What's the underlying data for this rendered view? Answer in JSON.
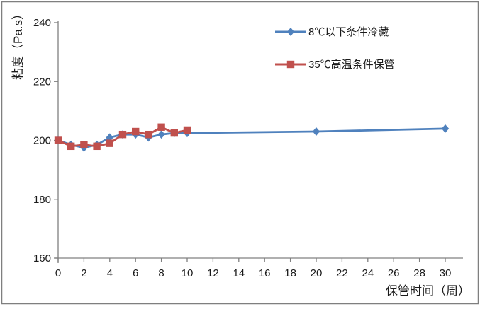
{
  "figure": {
    "background": "#ffffff",
    "border_color": "#7f7f7f"
  },
  "chart_data": {
    "type": "line",
    "title": "",
    "xlabel": "保管时间（周）",
    "ylabel": "粘度（Pa.s）",
    "xlim": [
      0,
      30
    ],
    "ylim": [
      160,
      240
    ],
    "xticks": [
      0,
      2,
      4,
      6,
      8,
      10,
      12,
      14,
      16,
      18,
      20,
      22,
      24,
      26,
      28,
      30
    ],
    "yticks": [
      160,
      180,
      200,
      220,
      240
    ],
    "grid": false,
    "legend_position": "inside-top-right",
    "axis_color": "#808080",
    "tick_label_color": "#1a1a1a",
    "series": [
      {
        "name": "8℃以下条件冷藏",
        "color": "#4F81BD",
        "marker": "diamond",
        "x": [
          0,
          1,
          2,
          3,
          4,
          5,
          6,
          7,
          8,
          9,
          10,
          20,
          30
        ],
        "values": [
          200,
          198.5,
          197.5,
          198.5,
          201,
          202,
          202,
          201,
          202,
          202.5,
          202.5,
          203,
          204
        ]
      },
      {
        "name": "35℃高温条件保管",
        "color": "#C0504D",
        "marker": "square",
        "x": [
          0,
          1,
          2,
          3,
          4,
          5,
          6,
          7,
          8,
          9,
          10
        ],
        "values": [
          200,
          198,
          198.5,
          198,
          199,
          202,
          203,
          202,
          204.5,
          202.5,
          203.5
        ]
      }
    ]
  }
}
